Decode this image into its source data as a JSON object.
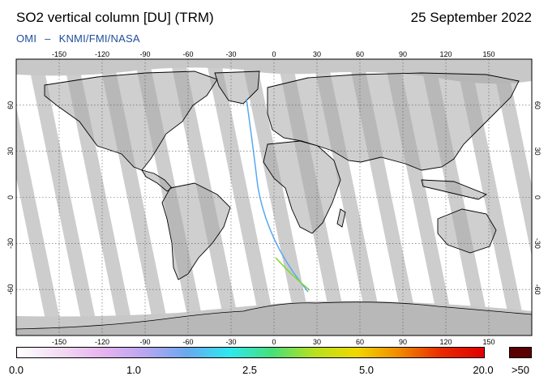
{
  "header": {
    "title": "SO2 vertical column [DU] (TRM)",
    "date": "25 September 2022",
    "credit_left": "OMI",
    "credit_dash": "–",
    "credit_right": "KNMI/FMI/NASA"
  },
  "map": {
    "lon_ticks": [
      "-150",
      "-120",
      "-90",
      "-60",
      "-30",
      "0",
      "30",
      "60",
      "90",
      "120",
      "150"
    ],
    "lat_ticks": [
      "60",
      "30",
      "0",
      "-30",
      "-60"
    ],
    "colors": {
      "no_data": "#c8c8c8",
      "land_mask": "#a8a8a8",
      "coast": "#000000",
      "grid": "#555555"
    }
  },
  "colorbar": {
    "labels": [
      "0.0",
      "1.0",
      "2.5",
      "5.0",
      "20.0",
      ">50"
    ],
    "stops": [
      "#ffffff",
      "#f2dcf2",
      "#e7b4ef",
      "#b9a6f0",
      "#6aa8f0",
      "#2ee8f0",
      "#46e07a",
      "#b8e020",
      "#f0d800",
      "#f08a00",
      "#e82a00",
      "#e00000"
    ],
    "over_color": "#5a0000"
  }
}
